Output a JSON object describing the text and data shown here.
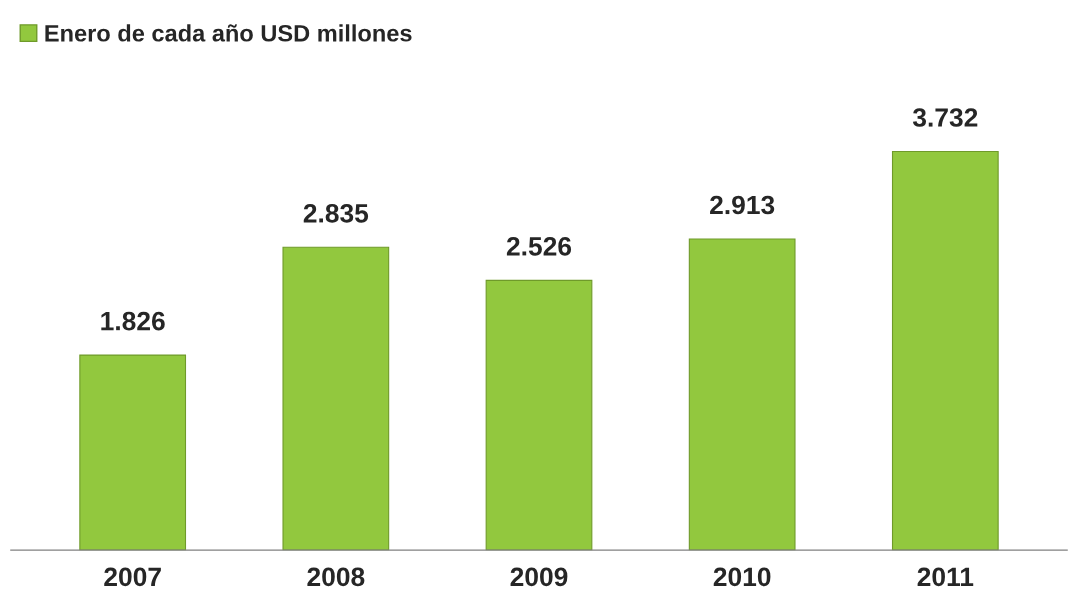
{
  "chart_data": {
    "type": "bar",
    "categories": [
      "2007",
      "2008",
      "2009",
      "2010",
      "2011"
    ],
    "series": [
      {
        "name": "Enero de cada año USD millones",
        "color": "#92c83e",
        "values": [
          1826,
          2835,
          2526,
          2913,
          3732
        ],
        "value_labels": [
          "1.826",
          "2.835",
          "2.526",
          "2.913",
          "3.732"
        ]
      }
    ],
    "legend": "top left",
    "grid": false
  }
}
